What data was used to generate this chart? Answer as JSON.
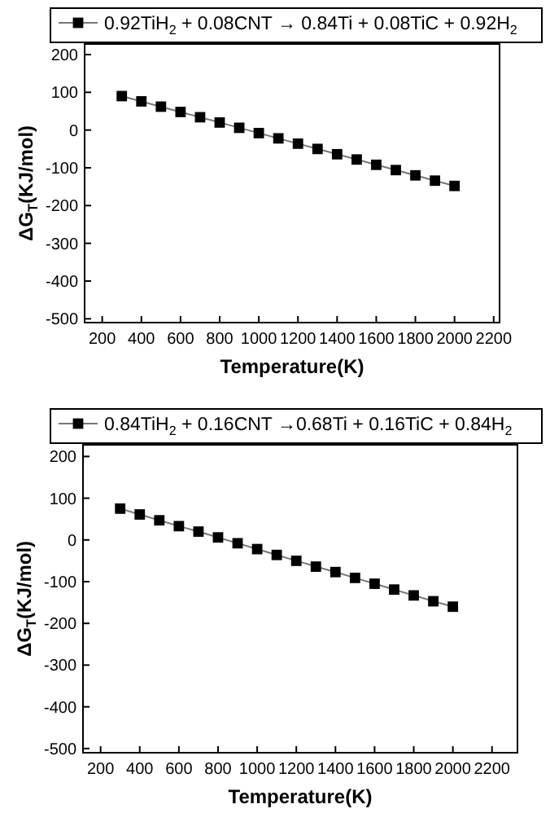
{
  "chart_data": [
    {
      "type": "line",
      "xlabel": "Temperature(K)",
      "ylabel": "ΔG$_{T}$(KJ/mol)",
      "x": [
        300,
        400,
        500,
        600,
        700,
        800,
        900,
        1000,
        1100,
        1200,
        1300,
        1400,
        1500,
        1600,
        1700,
        1800,
        1900,
        2000
      ],
      "series": [
        {
          "name": "0.92TiH$_{2}$ + 0.08CNT → 0.84Ti + 0.08TiC + 0.92H$_{2}$",
          "color": "#000000",
          "values": [
            90,
            76,
            62,
            48,
            34,
            20,
            6,
            -8,
            -22,
            -36,
            -50,
            -64,
            -78,
            -92,
            -106,
            -120,
            -134,
            -148
          ]
        }
      ],
      "xlim": [
        110,
        2230
      ],
      "ylim": [
        -510,
        228
      ],
      "xticks": [
        200,
        400,
        600,
        800,
        1000,
        1200,
        1400,
        1600,
        1800,
        2000,
        2200
      ],
      "yticks": [
        -500,
        -400,
        -300,
        -200,
        -100,
        0,
        100,
        200
      ],
      "marker": "square",
      "line_style": "solid",
      "legend": "top",
      "grid": false
    },
    {
      "type": "line",
      "xlabel": "Temperature(K)",
      "ylabel": "ΔG$_{T}$(KJ/mol)",
      "x": [
        300,
        400,
        500,
        600,
        700,
        800,
        900,
        1000,
        1100,
        1200,
        1300,
        1400,
        1500,
        1600,
        1700,
        1800,
        1900,
        2000
      ],
      "series": [
        {
          "name": "0.84TiH$_{2}$ + 0.16CNT →0.68Ti + 0.16TiC + 0.84H$_{2}$",
          "color": "#000000",
          "values": [
            75,
            61,
            47,
            33,
            20,
            6,
            -8,
            -22,
            -36,
            -50,
            -64,
            -77,
            -91,
            -105,
            -119,
            -133,
            -147,
            -160
          ]
        }
      ],
      "xlim": [
        110,
        2330
      ],
      "ylim": [
        -510,
        228
      ],
      "xticks": [
        200,
        400,
        600,
        800,
        1000,
        1200,
        1400,
        1600,
        1800,
        2000,
        2200
      ],
      "yticks": [
        -500,
        -400,
        -300,
        -200,
        -100,
        0,
        100,
        200
      ],
      "marker": "square",
      "line_style": "solid",
      "legend": "top",
      "grid": false
    }
  ]
}
